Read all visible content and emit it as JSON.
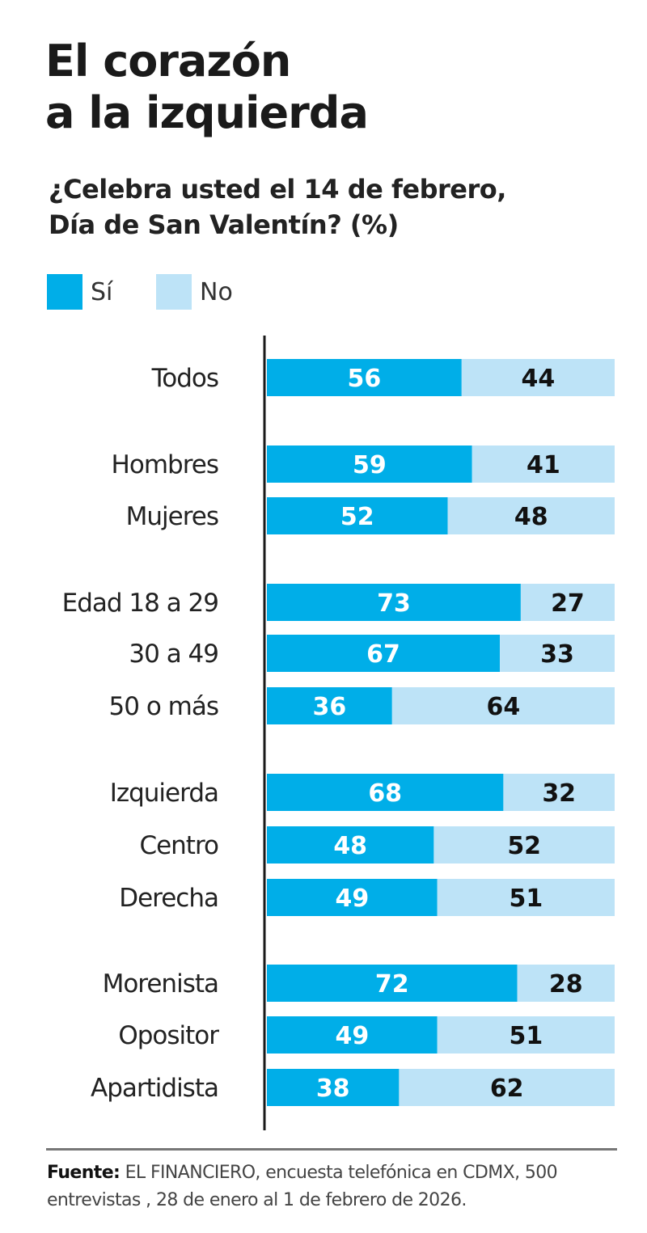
{
  "title": "El corazón\na la izquierda",
  "subtitle": "¿Celebra usted el 14 de febrero,\nDía de San Valentín? (%)",
  "legend": [
    {
      "label": "Sí",
      "color": "#00aee8"
    },
    {
      "label": "No",
      "color": "#bde3f7"
    }
  ],
  "chart_data": {
    "type": "bar",
    "orientation": "horizontal",
    "stacked": true,
    "title": "El corazón a la izquierda",
    "subtitle": "¿Celebra usted el 14 de febrero, Día de San Valentín? (%)",
    "xlim": [
      0,
      100
    ],
    "grid": false,
    "legend_position": "top-left",
    "categories": [
      "Todos",
      "Hombres",
      "Mujeres",
      "Edad 18 a 29",
      "30 a 49",
      "50 o más",
      "Izquierda",
      "Centro",
      "Derecha",
      "Morenista",
      "Opositor",
      "Apartidista"
    ],
    "groups": [
      [
        0
      ],
      [
        1,
        2
      ],
      [
        3,
        4,
        5
      ],
      [
        6,
        7,
        8
      ],
      [
        9,
        10,
        11
      ]
    ],
    "series": [
      {
        "name": "Sí",
        "color": "#00aee8",
        "values": [
          56,
          59,
          52,
          73,
          67,
          36,
          68,
          48,
          49,
          72,
          49,
          38
        ]
      },
      {
        "name": "No",
        "color": "#bde3f7",
        "values": [
          44,
          41,
          48,
          27,
          33,
          64,
          32,
          52,
          51,
          28,
          51,
          62
        ]
      }
    ]
  },
  "source": {
    "label": "Fuente:",
    "text": "EL FINANCIERO, encuesta telefónica en CDMX, 500 entrevistas , 28 de enero al 1 de febrero de 2026."
  }
}
